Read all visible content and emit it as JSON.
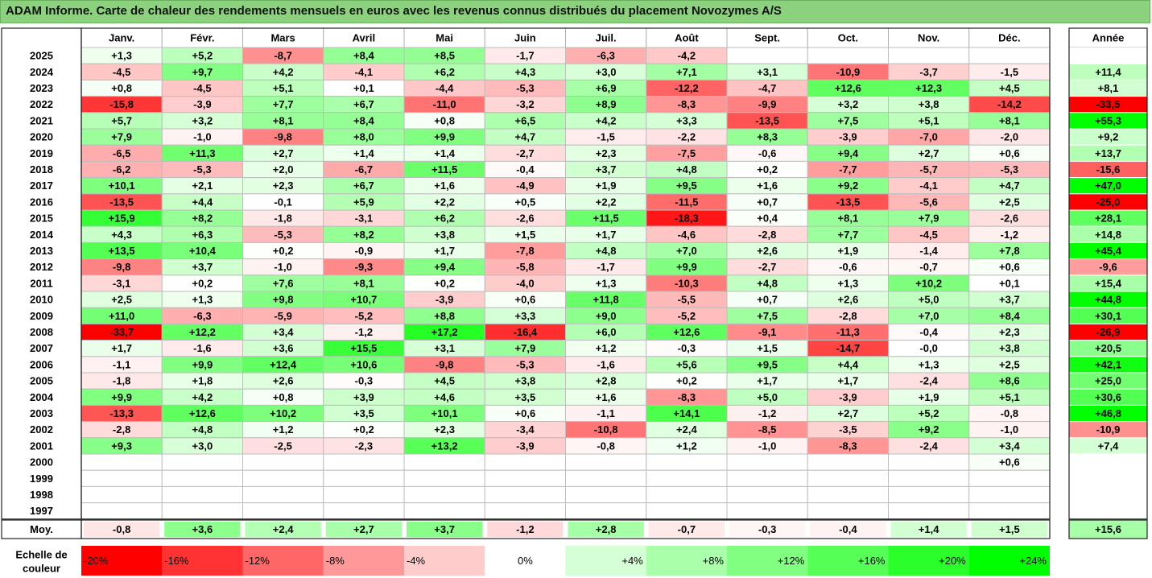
{
  "title": "ADAM Informe. Carte de chaleur des rendements mensuels en euros avec les revenus connus distribués du placement Novozymes A/S",
  "chart_data": {
    "type": "heatmap",
    "columns": [
      "Janv.",
      "Févr.",
      "Mars",
      "Avril",
      "Mai",
      "Juin",
      "Juil.",
      "Août",
      "Sept.",
      "Oct.",
      "Nov.",
      "Déc."
    ],
    "year_column_label": "Année",
    "rows": [
      {
        "year": "2025",
        "months": [
          "+1,3",
          "+5,2",
          "-8,7",
          "+8,4",
          "+8,5",
          "-1,7",
          "-6,3",
          "-4,2",
          "",
          "",
          "",
          ""
        ],
        "annual": ""
      },
      {
        "year": "2024",
        "months": [
          "-4,5",
          "+9,7",
          "+4,2",
          "-4,1",
          "+6,2",
          "+4,3",
          "+3,0",
          "+7,1",
          "+3,1",
          "-10,9",
          "-3,7",
          "-1,5"
        ],
        "annual": "+11,4"
      },
      {
        "year": "2023",
        "months": [
          "+0,8",
          "-4,5",
          "+5,1",
          "+0,1",
          "-4,4",
          "-5,3",
          "+6,9",
          "-12,2",
          "-4,7",
          "+12,6",
          "+12,3",
          "+4,5"
        ],
        "annual": "+8,1"
      },
      {
        "year": "2022",
        "months": [
          "-15,8",
          "-3,9",
          "+7,7",
          "+6,7",
          "-11,0",
          "-3,2",
          "+8,9",
          "-8,3",
          "-9,9",
          "+3,2",
          "+3,8",
          "-14,2"
        ],
        "annual": "-33,5"
      },
      {
        "year": "2021",
        "months": [
          "+5,7",
          "+3,2",
          "+8,1",
          "+8,4",
          "+0,8",
          "+6,5",
          "+4,2",
          "+3,3",
          "-13,5",
          "+7,5",
          "+5,1",
          "+8,1"
        ],
        "annual": "+55,3"
      },
      {
        "year": "2020",
        "months": [
          "+7,9",
          "-1,0",
          "-9,8",
          "+8,0",
          "+9,9",
          "+4,7",
          "-1,5",
          "-2,2",
          "+8,3",
          "-3,9",
          "-7,0",
          "-2,0"
        ],
        "annual": "+9,2"
      },
      {
        "year": "2019",
        "months": [
          "-6,5",
          "+11,3",
          "+2,7",
          "+1,4",
          "+1,4",
          "-2,7",
          "+2,3",
          "-7,5",
          "-0,6",
          "+9,4",
          "+2,7",
          "+0,6"
        ],
        "annual": "+13,7"
      },
      {
        "year": "2018",
        "months": [
          "-6,2",
          "-5,3",
          "+2,0",
          "-6,7",
          "+11,5",
          "-0,4",
          "+3,7",
          "+4,8",
          "+0,2",
          "-7,7",
          "-5,7",
          "-5,3"
        ],
        "annual": "-15,6"
      },
      {
        "year": "2017",
        "months": [
          "+10,1",
          "+2,1",
          "+2,3",
          "+6,7",
          "+1,6",
          "-4,9",
          "+1,9",
          "+9,5",
          "+1,6",
          "+9,2",
          "-4,1",
          "+4,7"
        ],
        "annual": "+47,0"
      },
      {
        "year": "2016",
        "months": [
          "-13,5",
          "+4,4",
          "-0,1",
          "+5,9",
          "+2,2",
          "+0,5",
          "+2,2",
          "-11,5",
          "+0,7",
          "-13,5",
          "-5,6",
          "+2,5"
        ],
        "annual": "-25,0"
      },
      {
        "year": "2015",
        "months": [
          "+15,9",
          "+8,2",
          "-1,8",
          "-3,1",
          "+6,2",
          "-2,6",
          "+11,5",
          "-18,3",
          "+0,4",
          "+8,1",
          "+7,9",
          "-2,6"
        ],
        "annual": "+28,1"
      },
      {
        "year": "2014",
        "months": [
          "+4,3",
          "+6,3",
          "-5,3",
          "+8,2",
          "+3,8",
          "+1,5",
          "+1,7",
          "-4,6",
          "-2,8",
          "+7,7",
          "-4,5",
          "-1,2"
        ],
        "annual": "+14,8"
      },
      {
        "year": "2013",
        "months": [
          "+13,5",
          "+10,4",
          "+0,2",
          "-0,9",
          "+1,7",
          "-7,8",
          "+4,8",
          "+7,0",
          "+2,6",
          "+1,9",
          "-1,4",
          "+7,8"
        ],
        "annual": "+45,4"
      },
      {
        "year": "2012",
        "months": [
          "-9,8",
          "+3,7",
          "-1,0",
          "-9,3",
          "+9,4",
          "-5,8",
          "-1,7",
          "+9,9",
          "-2,7",
          "-0,6",
          "-0,7",
          "+0,6"
        ],
        "annual": "-9,6"
      },
      {
        "year": "2011",
        "months": [
          "-3,1",
          "+0,2",
          "+7,6",
          "+8,1",
          "+0,2",
          "-4,0",
          "+1,3",
          "-10,3",
          "+4,8",
          "+1,3",
          "+10,2",
          "+0,1"
        ],
        "annual": "+15,4"
      },
      {
        "year": "2010",
        "months": [
          "+2,5",
          "+1,3",
          "+9,8",
          "+10,7",
          "-3,9",
          "+0,6",
          "+11,8",
          "-5,5",
          "+0,7",
          "+2,6",
          "+5,0",
          "+3,7"
        ],
        "annual": "+44,8"
      },
      {
        "year": "2009",
        "months": [
          "+11,0",
          "-6,3",
          "-5,9",
          "-5,2",
          "+8,8",
          "+3,3",
          "+9,0",
          "-5,2",
          "+7,5",
          "-2,8",
          "+7,0",
          "+8,4"
        ],
        "annual": "+30,1"
      },
      {
        "year": "2008",
        "months": [
          "-33,7",
          "+12,2",
          "+3,4",
          "-1,2",
          "+17,2",
          "-16,4",
          "+6,0",
          "+12,6",
          "-9,1",
          "-11,3",
          "-0,4",
          "+2,3"
        ],
        "annual": "-26,9"
      },
      {
        "year": "2007",
        "months": [
          "+1,7",
          "-1,6",
          "+3,6",
          "+15,5",
          "+3,1",
          "+7,9",
          "+1,2",
          "-0,3",
          "+1,5",
          "-14,7",
          "-0,0",
          "+3,8"
        ],
        "annual": "+20,5"
      },
      {
        "year": "2006",
        "months": [
          "-1,1",
          "+9,9",
          "+12,4",
          "+10,6",
          "-9,8",
          "-5,3",
          "-1,6",
          "+5,6",
          "+9,5",
          "+4,4",
          "+1,3",
          "+2,5"
        ],
        "annual": "+42,1"
      },
      {
        "year": "2005",
        "months": [
          "-1,8",
          "+1,8",
          "+2,6",
          "-0,3",
          "+4,5",
          "+3,8",
          "+2,8",
          "+0,2",
          "+1,7",
          "+1,7",
          "-2,4",
          "+8,6"
        ],
        "annual": "+25,0"
      },
      {
        "year": "2004",
        "months": [
          "+9,9",
          "+4,2",
          "+0,8",
          "+3,9",
          "+4,6",
          "+3,5",
          "+1,6",
          "-8,3",
          "+5,0",
          "-3,9",
          "+1,9",
          "+5,1"
        ],
        "annual": "+30,6"
      },
      {
        "year": "2003",
        "months": [
          "-13,3",
          "+12,6",
          "+10,2",
          "+3,5",
          "+10,1",
          "+0,6",
          "-1,1",
          "+14,1",
          "-1,2",
          "+2,7",
          "+5,2",
          "-0,8"
        ],
        "annual": "+46,8"
      },
      {
        "year": "2002",
        "months": [
          "-2,8",
          "+4,8",
          "+1,2",
          "+0,2",
          "+2,3",
          "-3,4",
          "-10,8",
          "+2,4",
          "-8,5",
          "-3,5",
          "+9,2",
          "-1,0"
        ],
        "annual": "-10,9"
      },
      {
        "year": "2001",
        "months": [
          "+9,3",
          "+3,0",
          "-2,5",
          "-2,3",
          "+13,2",
          "-3,9",
          "-0,8",
          "+1,2",
          "-1,0",
          "-8,3",
          "-2,4",
          "+3,4"
        ],
        "annual": "+7,4"
      },
      {
        "year": "2000",
        "months": [
          "",
          "",
          "",
          "",
          "",
          "",
          "",
          "",
          "",
          "",
          "",
          "+0,6"
        ],
        "annual": ""
      },
      {
        "year": "1999",
        "months": [
          "",
          "",
          "",
          "",
          "",
          "",
          "",
          "",
          "",
          "",
          "",
          ""
        ],
        "annual": ""
      },
      {
        "year": "1998",
        "months": [
          "",
          "",
          "",
          "",
          "",
          "",
          "",
          "",
          "",
          "",
          "",
          ""
        ],
        "annual": ""
      },
      {
        "year": "1997",
        "months": [
          "",
          "",
          "",
          "",
          "",
          "",
          "",
          "",
          "",
          "",
          "",
          ""
        ],
        "annual": ""
      }
    ],
    "average": {
      "label": "Moy.",
      "months": [
        "-0,8",
        "+3,6",
        "+2,4",
        "+2,7",
        "+3,7",
        "-1,2",
        "+2,8",
        "-0,7",
        "-0,3",
        "-0,4",
        "+1,4",
        "+1,5"
      ],
      "annual": "+15,6"
    },
    "legend": {
      "label_line1": "Echelle de",
      "label_line2": "couleur",
      "steps": [
        "-20%",
        "-16%",
        "-12%",
        "-8%",
        "-4%",
        "0%",
        "+4%",
        "+8%",
        "+12%",
        "+16%",
        "+20%",
        "+24%"
      ],
      "values": [
        -20,
        -16,
        -12,
        -8,
        -4,
        0,
        4,
        8,
        12,
        16,
        20,
        24
      ]
    },
    "color_scale": {
      "negative_full": "#ff0000",
      "neutral": "#ffffff",
      "positive_full": "#00ff00"
    }
  }
}
